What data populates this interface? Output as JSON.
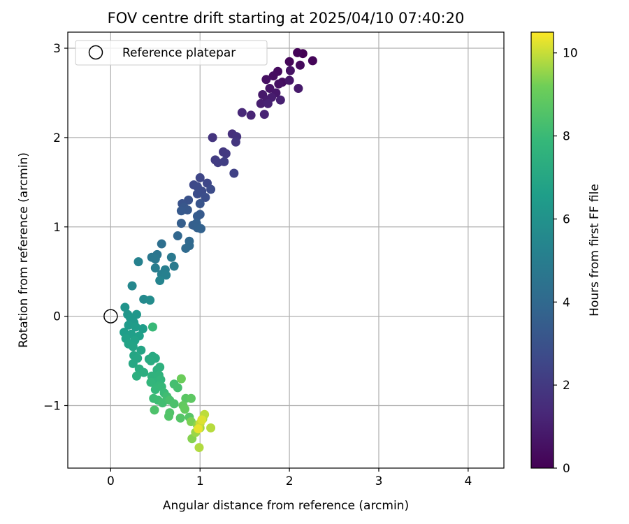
{
  "chart_data": {
    "type": "scatter",
    "title": "FOV centre drift starting at 2025/04/10 07:40:20",
    "xlabel": "Angular distance from reference (arcmin)",
    "ylabel": "Rotation from reference (arcmin)",
    "xlim": [
      -0.48,
      4.4
    ],
    "ylim": [
      -1.7,
      3.18
    ],
    "xticks": [
      0,
      1,
      2,
      3,
      4
    ],
    "yticks": [
      -1,
      0,
      1,
      2,
      3
    ],
    "xtick_labels": [
      "0",
      "1",
      "2",
      "3",
      "4"
    ],
    "ytick_labels": [
      "−1",
      "0",
      "1",
      "2",
      "3"
    ],
    "grid": true,
    "legend": {
      "placement": "upper-left",
      "entries": [
        {
          "label": "Reference platepar",
          "marker": "open-circle"
        }
      ]
    },
    "reference_point": {
      "x": 0,
      "y": 0
    },
    "colorbar": {
      "label": "Hours from first FF file",
      "colormap": "viridis",
      "range": [
        0,
        10.5
      ],
      "ticks": [
        0,
        2,
        4,
        6,
        8,
        10
      ],
      "tick_labels": [
        "0",
        "2",
        "4",
        "6",
        "8",
        "10"
      ]
    },
    "points": [
      {
        "x": 2.15,
        "y": 2.94,
        "c": 0.0
      },
      {
        "x": 2.09,
        "y": 2.95,
        "c": 0.1
      },
      {
        "x": 2.26,
        "y": 2.86,
        "c": 0.15
      },
      {
        "x": 2.0,
        "y": 2.85,
        "c": 0.2
      },
      {
        "x": 2.12,
        "y": 2.81,
        "c": 0.3
      },
      {
        "x": 1.87,
        "y": 2.74,
        "c": 0.35
      },
      {
        "x": 1.82,
        "y": 2.69,
        "c": 0.4
      },
      {
        "x": 1.92,
        "y": 2.62,
        "c": 0.45
      },
      {
        "x": 1.74,
        "y": 2.65,
        "c": 0.5
      },
      {
        "x": 1.88,
        "y": 2.6,
        "c": 0.55
      },
      {
        "x": 2.01,
        "y": 2.75,
        "c": 0.6
      },
      {
        "x": 1.78,
        "y": 2.55,
        "c": 0.65
      },
      {
        "x": 2.0,
        "y": 2.64,
        "c": 0.7
      },
      {
        "x": 1.85,
        "y": 2.5,
        "c": 0.75
      },
      {
        "x": 1.7,
        "y": 2.48,
        "c": 0.8
      },
      {
        "x": 2.1,
        "y": 2.55,
        "c": 0.85
      },
      {
        "x": 1.75,
        "y": 2.42,
        "c": 0.9
      },
      {
        "x": 1.8,
        "y": 2.45,
        "c": 0.95
      },
      {
        "x": 1.68,
        "y": 2.38,
        "c": 1.0
      },
      {
        "x": 1.9,
        "y": 2.42,
        "c": 1.05
      },
      {
        "x": 1.76,
        "y": 2.38,
        "c": 1.1
      },
      {
        "x": 1.72,
        "y": 2.26,
        "c": 1.15
      },
      {
        "x": 1.57,
        "y": 2.25,
        "c": 1.2
      },
      {
        "x": 1.47,
        "y": 2.28,
        "c": 1.3
      },
      {
        "x": 1.36,
        "y": 2.04,
        "c": 1.6
      },
      {
        "x": 1.41,
        "y": 2.01,
        "c": 1.7
      },
      {
        "x": 1.14,
        "y": 2.0,
        "c": 1.8
      },
      {
        "x": 1.4,
        "y": 1.95,
        "c": 1.85
      },
      {
        "x": 1.26,
        "y": 1.84,
        "c": 1.95
      },
      {
        "x": 1.29,
        "y": 1.82,
        "c": 2.0
      },
      {
        "x": 1.17,
        "y": 1.75,
        "c": 2.1
      },
      {
        "x": 1.2,
        "y": 1.72,
        "c": 2.15
      },
      {
        "x": 1.27,
        "y": 1.73,
        "c": 2.2
      },
      {
        "x": 1.38,
        "y": 1.6,
        "c": 2.3
      },
      {
        "x": 1.0,
        "y": 1.55,
        "c": 2.5
      },
      {
        "x": 1.08,
        "y": 1.49,
        "c": 2.55
      },
      {
        "x": 0.93,
        "y": 1.47,
        "c": 2.6
      },
      {
        "x": 0.97,
        "y": 1.45,
        "c": 2.65
      },
      {
        "x": 1.02,
        "y": 1.4,
        "c": 2.7
      },
      {
        "x": 1.12,
        "y": 1.42,
        "c": 2.75
      },
      {
        "x": 0.97,
        "y": 1.37,
        "c": 2.8
      },
      {
        "x": 1.06,
        "y": 1.33,
        "c": 2.85
      },
      {
        "x": 0.87,
        "y": 1.3,
        "c": 3.0
      },
      {
        "x": 0.8,
        "y": 1.26,
        "c": 3.05
      },
      {
        "x": 1.0,
        "y": 1.26,
        "c": 3.1
      },
      {
        "x": 0.82,
        "y": 1.22,
        "c": 3.2
      },
      {
        "x": 0.86,
        "y": 1.19,
        "c": 3.25
      },
      {
        "x": 0.79,
        "y": 1.18,
        "c": 3.3
      },
      {
        "x": 1.0,
        "y": 1.14,
        "c": 3.35
      },
      {
        "x": 0.97,
        "y": 1.12,
        "c": 3.4
      },
      {
        "x": 0.79,
        "y": 1.04,
        "c": 3.5
      },
      {
        "x": 0.92,
        "y": 1.02,
        "c": 3.55
      },
      {
        "x": 0.96,
        "y": 1.04,
        "c": 3.6
      },
      {
        "x": 0.97,
        "y": 0.99,
        "c": 3.65
      },
      {
        "x": 1.01,
        "y": 0.98,
        "c": 3.7
      },
      {
        "x": 0.75,
        "y": 0.9,
        "c": 3.9
      },
      {
        "x": 0.88,
        "y": 0.84,
        "c": 4.0
      },
      {
        "x": 0.88,
        "y": 0.79,
        "c": 4.05
      },
      {
        "x": 0.84,
        "y": 0.76,
        "c": 4.1
      },
      {
        "x": 0.57,
        "y": 0.81,
        "c": 4.3
      },
      {
        "x": 0.52,
        "y": 0.69,
        "c": 4.6
      },
      {
        "x": 0.46,
        "y": 0.66,
        "c": 4.7
      },
      {
        "x": 0.5,
        "y": 0.64,
        "c": 4.75
      },
      {
        "x": 0.68,
        "y": 0.66,
        "c": 4.8
      },
      {
        "x": 0.71,
        "y": 0.56,
        "c": 4.9
      },
      {
        "x": 0.5,
        "y": 0.54,
        "c": 5.0
      },
      {
        "x": 0.61,
        "y": 0.52,
        "c": 5.05
      },
      {
        "x": 0.57,
        "y": 0.47,
        "c": 5.1
      },
      {
        "x": 0.62,
        "y": 0.46,
        "c": 5.15
      },
      {
        "x": 0.31,
        "y": 0.61,
        "c": 5.2
      },
      {
        "x": 0.55,
        "y": 0.4,
        "c": 5.35
      },
      {
        "x": 0.24,
        "y": 0.34,
        "c": 5.5
      },
      {
        "x": 0.37,
        "y": 0.19,
        "c": 5.6
      },
      {
        "x": 0.44,
        "y": 0.18,
        "c": 5.7
      },
      {
        "x": 0.16,
        "y": 0.1,
        "c": 6.1
      },
      {
        "x": 0.19,
        "y": 0.02,
        "c": 6.2
      },
      {
        "x": 0.29,
        "y": 0.02,
        "c": 6.25
      },
      {
        "x": 0.22,
        "y": -0.02,
        "c": 6.3
      },
      {
        "x": 0.26,
        "y": -0.07,
        "c": 6.35
      },
      {
        "x": 0.2,
        "y": -0.1,
        "c": 6.4
      },
      {
        "x": 0.28,
        "y": -0.12,
        "c": 6.45
      },
      {
        "x": 0.36,
        "y": -0.14,
        "c": 6.5
      },
      {
        "x": 0.15,
        "y": -0.18,
        "c": 6.55
      },
      {
        "x": 0.23,
        "y": -0.2,
        "c": 6.6
      },
      {
        "x": 0.32,
        "y": -0.22,
        "c": 6.65
      },
      {
        "x": 0.17,
        "y": -0.25,
        "c": 6.7
      },
      {
        "x": 0.27,
        "y": -0.27,
        "c": 6.75
      },
      {
        "x": 0.2,
        "y": -0.31,
        "c": 6.8
      },
      {
        "x": 0.25,
        "y": -0.34,
        "c": 6.85
      },
      {
        "x": 0.34,
        "y": -0.38,
        "c": 6.9
      },
      {
        "x": 0.26,
        "y": -0.44,
        "c": 6.95
      },
      {
        "x": 0.3,
        "y": -0.47,
        "c": 7.0
      },
      {
        "x": 0.25,
        "y": -0.53,
        "c": 7.05
      },
      {
        "x": 0.43,
        "y": -0.48,
        "c": 7.1
      },
      {
        "x": 0.47,
        "y": -0.45,
        "c": 7.15
      },
      {
        "x": 0.5,
        "y": -0.47,
        "c": 7.2
      },
      {
        "x": 0.45,
        "y": -0.5,
        "c": 7.25
      },
      {
        "x": 0.32,
        "y": -0.59,
        "c": 7.3
      },
      {
        "x": 0.37,
        "y": -0.63,
        "c": 7.35
      },
      {
        "x": 0.29,
        "y": -0.67,
        "c": 7.4
      },
      {
        "x": 0.52,
        "y": -0.6,
        "c": 7.45
      },
      {
        "x": 0.55,
        "y": -0.57,
        "c": 7.5
      },
      {
        "x": 0.46,
        "y": -0.67,
        "c": 7.55
      },
      {
        "x": 0.54,
        "y": -0.66,
        "c": 7.6
      },
      {
        "x": 0.49,
        "y": -0.74,
        "c": 7.65
      },
      {
        "x": 0.56,
        "y": -0.71,
        "c": 7.7
      },
      {
        "x": 0.45,
        "y": -0.74,
        "c": 7.75
      },
      {
        "x": 0.54,
        "y": -0.78,
        "c": 7.8
      },
      {
        "x": 0.5,
        "y": -0.82,
        "c": 7.85
      },
      {
        "x": 0.57,
        "y": -0.79,
        "c": 7.9
      },
      {
        "x": 0.47,
        "y": -0.12,
        "c": 7.95
      },
      {
        "x": 0.6,
        "y": -0.86,
        "c": 8.0
      },
      {
        "x": 0.48,
        "y": -0.92,
        "c": 8.05
      },
      {
        "x": 0.53,
        "y": -0.94,
        "c": 8.1
      },
      {
        "x": 0.63,
        "y": -0.9,
        "c": 8.15
      },
      {
        "x": 0.58,
        "y": -0.97,
        "c": 8.2
      },
      {
        "x": 0.71,
        "y": -0.76,
        "c": 8.25
      },
      {
        "x": 0.75,
        "y": -0.8,
        "c": 8.3
      },
      {
        "x": 0.66,
        "y": -0.94,
        "c": 8.35
      },
      {
        "x": 0.71,
        "y": -0.98,
        "c": 8.4
      },
      {
        "x": 0.49,
        "y": -1.05,
        "c": 8.45
      },
      {
        "x": 0.66,
        "y": -1.08,
        "c": 8.5
      },
      {
        "x": 0.65,
        "y": -1.12,
        "c": 8.55
      },
      {
        "x": 0.78,
        "y": -1.14,
        "c": 8.6
      },
      {
        "x": 0.88,
        "y": -1.13,
        "c": 8.65
      },
      {
        "x": 0.84,
        "y": -0.92,
        "c": 8.7
      },
      {
        "x": 0.9,
        "y": -0.92,
        "c": 8.8
      },
      {
        "x": 0.81,
        "y": -1.0,
        "c": 8.9
      },
      {
        "x": 0.83,
        "y": -1.04,
        "c": 8.95
      },
      {
        "x": 0.79,
        "y": -0.7,
        "c": 9.1
      },
      {
        "x": 0.9,
        "y": -1.18,
        "c": 9.3
      },
      {
        "x": 0.91,
        "y": -1.37,
        "c": 9.4
      },
      {
        "x": 0.97,
        "y": -1.22,
        "c": 9.5
      },
      {
        "x": 0.95,
        "y": -1.3,
        "c": 9.6
      },
      {
        "x": 1.0,
        "y": -1.25,
        "c": 9.65
      },
      {
        "x": 1.03,
        "y": -1.15,
        "c": 9.7
      },
      {
        "x": 0.99,
        "y": -1.47,
        "c": 9.8
      },
      {
        "x": 1.12,
        "y": -1.25,
        "c": 9.85
      },
      {
        "x": 1.05,
        "y": -1.1,
        "c": 9.9
      },
      {
        "x": 1.0,
        "y": -1.2,
        "c": 10.0
      },
      {
        "x": 1.02,
        "y": -1.16,
        "c": 10.2
      },
      {
        "x": 0.98,
        "y": -1.26,
        "c": 10.3
      }
    ]
  }
}
